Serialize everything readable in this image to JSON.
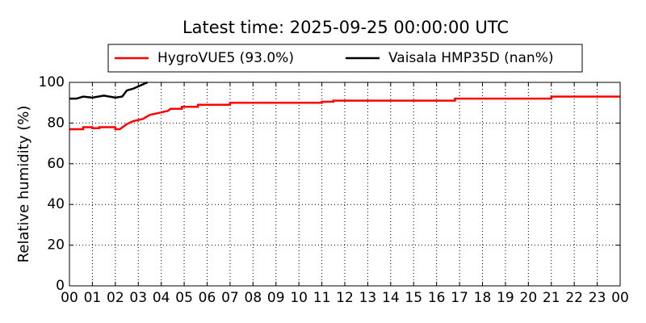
{
  "chart_data": {
    "type": "line",
    "title": "Latest time: 2025-09-25 00:00:00 UTC",
    "ylabel": "Relative humidity (%)",
    "xlim": [
      0,
      24
    ],
    "xticks": [
      {
        "value": 0,
        "label": "00"
      },
      {
        "value": 1,
        "label": "01"
      },
      {
        "value": 2,
        "label": "02"
      },
      {
        "value": 3,
        "label": "03"
      },
      {
        "value": 4,
        "label": "04"
      },
      {
        "value": 5,
        "label": "05"
      },
      {
        "value": 6,
        "label": "06"
      },
      {
        "value": 7,
        "label": "07"
      },
      {
        "value": 8,
        "label": "08"
      },
      {
        "value": 9,
        "label": "09"
      },
      {
        "value": 10,
        "label": "10"
      },
      {
        "value": 11,
        "label": "11"
      },
      {
        "value": 12,
        "label": "12"
      },
      {
        "value": 13,
        "label": "13"
      },
      {
        "value": 14,
        "label": "14"
      },
      {
        "value": 15,
        "label": "15"
      },
      {
        "value": 16,
        "label": "16"
      },
      {
        "value": 17,
        "label": "17"
      },
      {
        "value": 18,
        "label": "18"
      },
      {
        "value": 19,
        "label": "19"
      },
      {
        "value": 20,
        "label": "20"
      },
      {
        "value": 21,
        "label": "21"
      },
      {
        "value": 22,
        "label": "22"
      },
      {
        "value": 23,
        "label": "23"
      },
      {
        "value": 24,
        "label": "00"
      }
    ],
    "ylim": [
      0,
      100
    ],
    "yticks": [
      0,
      20,
      40,
      60,
      80,
      100
    ],
    "grid": true,
    "legend": "top",
    "series": [
      {
        "name": "HygroVUE5 (93.0%)",
        "color": "#ff0000",
        "x": [
          0,
          0.6,
          0.6,
          1.0,
          1.0,
          1.3,
          1.3,
          2.0,
          2.0,
          2.2,
          2.5,
          2.8,
          3.2,
          3.5,
          3.9,
          4.3,
          4.4,
          4.9,
          4.9,
          5.6,
          5.6,
          7.0,
          7.0,
          11.0,
          11.0,
          11.5,
          11.5,
          16.8,
          16.8,
          21.0,
          21.0,
          24
        ],
        "values": [
          77,
          77,
          78,
          78,
          77.5,
          77.5,
          78,
          78,
          77,
          77,
          79.5,
          81,
          82,
          84,
          85,
          86,
          87,
          87,
          88,
          88,
          89,
          89,
          90,
          90,
          90.5,
          90.5,
          91,
          91,
          92,
          92,
          93,
          93
        ]
      },
      {
        "name": "Vaisala HMP35D (nan%)",
        "color": "#000000",
        "x": [
          0,
          0.3,
          0.6,
          1.0,
          1.5,
          2.0,
          2.3,
          2.5,
          2.8,
          3.0,
          3.2,
          3.4
        ],
        "values": [
          92,
          92,
          93,
          92.5,
          93.5,
          92.5,
          93,
          96,
          97,
          98,
          99,
          100
        ]
      }
    ]
  }
}
